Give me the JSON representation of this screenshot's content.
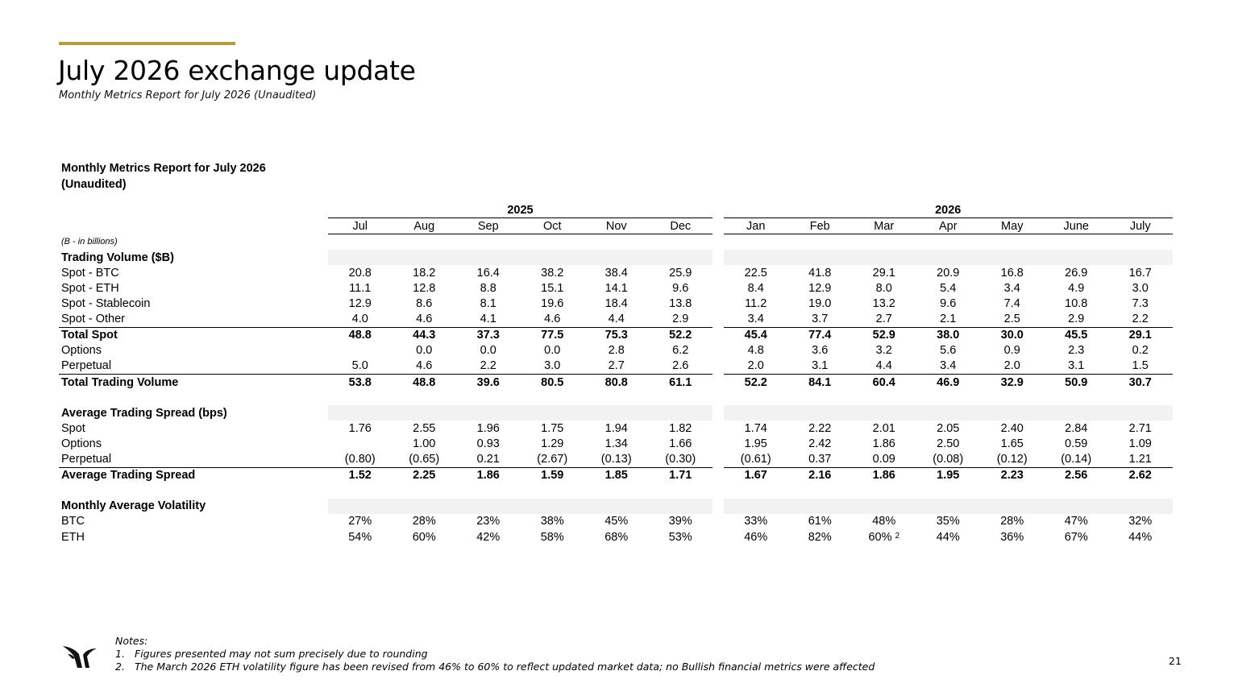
{
  "header": {
    "title": "July 2026 exchange update",
    "subtitle": "Monthly Metrics Report for July 2026 (Unaudited)",
    "accent_color": "#b89a3e"
  },
  "report": {
    "title_line1": "Monthly Metrics Report for July 2026",
    "title_line2": "(Unaudited)",
    "years": [
      "2025",
      "2026"
    ],
    "months_2025": [
      "Jul",
      "Aug",
      "Sep",
      "Oct",
      "Nov",
      "Dec"
    ],
    "months_2026": [
      "Jan",
      "Feb",
      "Mar",
      "Apr",
      "May",
      "June",
      "July"
    ],
    "unit_note": "(B - in billions)",
    "sections": [
      {
        "title": "Trading Volume ($B)",
        "rows": [
          {
            "label": "Spot - BTC",
            "values": [
              "20.8",
              "18.2",
              "16.4",
              "38.2",
              "38.4",
              "25.9",
              "22.5",
              "41.8",
              "29.1",
              "20.9",
              "16.8",
              "26.9",
              "16.7"
            ]
          },
          {
            "label": "Spot - ETH",
            "values": [
              "11.1",
              "12.8",
              "8.8",
              "15.1",
              "14.1",
              "9.6",
              "8.4",
              "12.9",
              "8.0",
              "5.4",
              "3.4",
              "4.9",
              "3.0"
            ]
          },
          {
            "label": "Spot - Stablecoin",
            "values": [
              "12.9",
              "8.6",
              "8.1",
              "19.6",
              "18.4",
              "13.8",
              "11.2",
              "19.0",
              "13.2",
              "9.6",
              "7.4",
              "10.8",
              "7.3"
            ]
          },
          {
            "label": "Spot - Other",
            "values": [
              "4.0",
              "4.6",
              "4.1",
              "4.6",
              "4.4",
              "2.9",
              "3.4",
              "3.7",
              "2.7",
              "2.1",
              "2.5",
              "2.9",
              "2.2"
            ]
          },
          {
            "label": "Total Spot",
            "total": true,
            "values": [
              "48.8",
              "44.3",
              "37.3",
              "77.5",
              "75.3",
              "52.2",
              "45.4",
              "77.4",
              "52.9",
              "38.0",
              "30.0",
              "45.5",
              "29.1"
            ]
          },
          {
            "label": "Options",
            "values": [
              "",
              "0.0",
              "0.0",
              "0.0",
              "2.8",
              "6.2",
              "4.8",
              "3.6",
              "3.2",
              "5.6",
              "0.9",
              "2.3",
              "0.2"
            ]
          },
          {
            "label": "Perpetual",
            "values": [
              "5.0",
              "4.6",
              "2.2",
              "3.0",
              "2.7",
              "2.6",
              "2.0",
              "3.1",
              "4.4",
              "3.4",
              "2.0",
              "3.1",
              "1.5"
            ]
          },
          {
            "label": "Total Trading Volume",
            "total": true,
            "values": [
              "53.8",
              "48.8",
              "39.6",
              "80.5",
              "80.8",
              "61.1",
              "52.2",
              "84.1",
              "60.4",
              "46.9",
              "32.9",
              "50.9",
              "30.7"
            ]
          }
        ]
      },
      {
        "title": "Average Trading Spread (bps)",
        "rows": [
          {
            "label": "Spot",
            "values": [
              "1.76",
              "2.55",
              "1.96",
              "1.75",
              "1.94",
              "1.82",
              "1.74",
              "2.22",
              "2.01",
              "2.05",
              "2.40",
              "2.84",
              "2.71"
            ]
          },
          {
            "label": "Options",
            "values": [
              "",
              "1.00",
              "0.93",
              "1.29",
              "1.34",
              "1.66",
              "1.95",
              "2.42",
              "1.86",
              "2.50",
              "1.65",
              "0.59",
              "1.09"
            ]
          },
          {
            "label": "Perpetual",
            "values": [
              "(0.80)",
              "(0.65)",
              "0.21",
              "(2.67)",
              "(0.13)",
              "(0.30)",
              "(0.61)",
              "0.37",
              "0.09",
              "(0.08)",
              "(0.12)",
              "(0.14)",
              "1.21"
            ]
          },
          {
            "label": "Average Trading Spread",
            "total": true,
            "values": [
              "1.52",
              "2.25",
              "1.86",
              "1.59",
              "1.85",
              "1.71",
              "1.67",
              "2.16",
              "1.86",
              "1.95",
              "2.23",
              "2.56",
              "2.62"
            ]
          }
        ]
      },
      {
        "title": "Monthly Average Volatility",
        "rows": [
          {
            "label": "BTC",
            "values": [
              "27%",
              "28%",
              "23%",
              "38%",
              "45%",
              "39%",
              "33%",
              "61%",
              "48%",
              "35%",
              "28%",
              "47%",
              "32%"
            ]
          },
          {
            "label": "ETH",
            "values": [
              "54%",
              "60%",
              "42%",
              "58%",
              "68%",
              "53%",
              "46%",
              "82%",
              "60%",
              "44%",
              "36%",
              "67%",
              "44%"
            ],
            "footnotes": {
              "8": "2"
            }
          }
        ]
      }
    ]
  },
  "footer": {
    "logo_icon": "bull-horns-logo-icon",
    "notes_title": "Notes:",
    "notes": [
      {
        "num": "1.",
        "text": "Figures presented may not sum precisely due to rounding"
      },
      {
        "num": "2.",
        "text": "The March 2026 ETH volatility figure has been revised from 46% to 60% to reflect updated market data; no Bullish financial metrics were affected"
      }
    ],
    "page_number": "21"
  }
}
